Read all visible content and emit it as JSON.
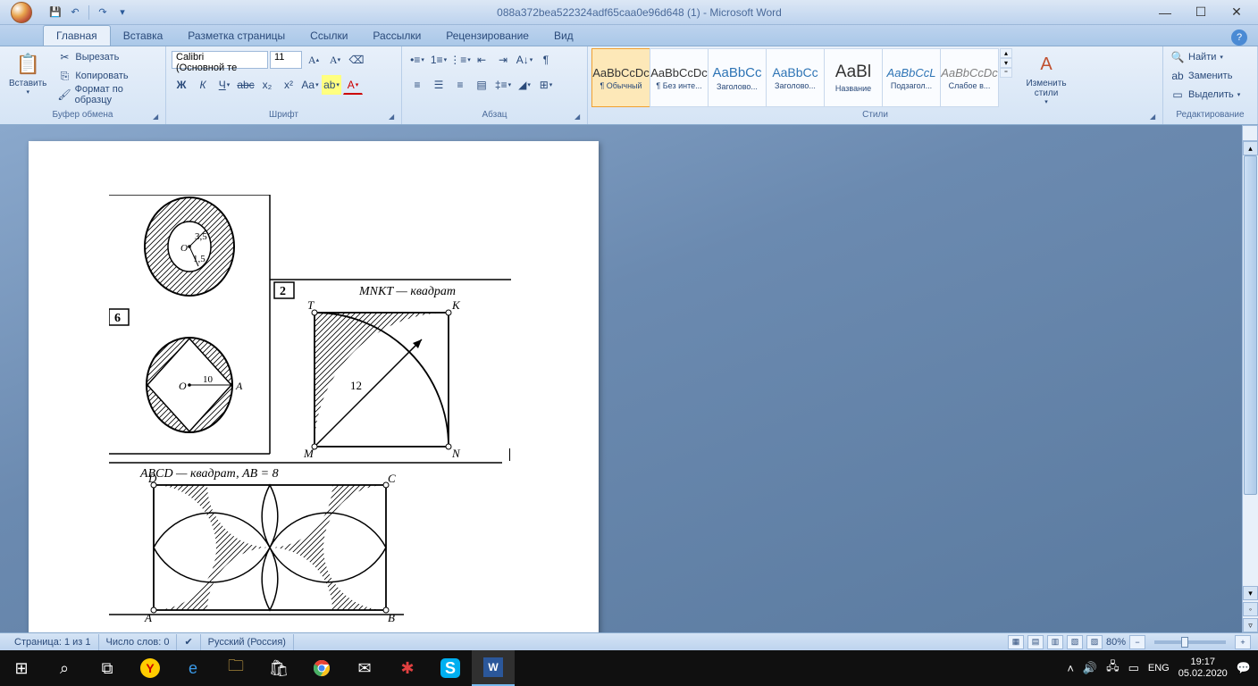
{
  "window": {
    "title": "088a372bea522324adf65caa0e96d648 (1) - Microsoft Word"
  },
  "qat": {
    "save": "💾",
    "undo": "↶",
    "redo": "↷",
    "dd": "▾"
  },
  "tabs": [
    "Главная",
    "Вставка",
    "Разметка страницы",
    "Ссылки",
    "Рассылки",
    "Рецензирование",
    "Вид"
  ],
  "clipboard": {
    "paste": "Вставить",
    "cut": "Вырезать",
    "copy": "Копировать",
    "format": "Формат по образцу",
    "group": "Буфер обмена"
  },
  "font": {
    "name": "Calibri (Основной те",
    "size": "11",
    "group": "Шрифт"
  },
  "paragraph": {
    "group": "Абзац"
  },
  "styles": {
    "group": "Стили",
    "change": "Изменить стили",
    "items": [
      {
        "preview": "AaBbCcDc",
        "name": "¶ Обычный",
        "sel": true
      },
      {
        "preview": "AaBbCcDc",
        "name": "¶ Без инте...",
        "sel": false
      },
      {
        "preview": "AaBbCc",
        "name": "Заголово...",
        "sel": false,
        "color": "#2e74b5",
        "fs": "15px"
      },
      {
        "preview": "AaBbCc",
        "name": "Заголово...",
        "sel": false,
        "color": "#2e74b5",
        "fs": "14px"
      },
      {
        "preview": "AaBl",
        "name": "Название",
        "sel": false,
        "fs": "19px"
      },
      {
        "preview": "AaBbCcL",
        "name": "Подзагол...",
        "sel": false,
        "color": "#2e74b5",
        "italic": true
      },
      {
        "preview": "AaBbCcDc",
        "name": "Слабое в...",
        "sel": false,
        "color": "#808080",
        "italic": true
      }
    ]
  },
  "editing": {
    "find": "Найти",
    "replace": "Заменить",
    "select": "Выделить",
    "group": "Редактирование"
  },
  "document": {
    "fig1": {
      "r_outer": "3,5",
      "r_inner": "1,5",
      "center": "O"
    },
    "fig6": {
      "num": "6",
      "center": "O",
      "pointA": "A",
      "radius": "10"
    },
    "fig2": {
      "num": "2",
      "title": "MNKT — квадрат",
      "T": "T",
      "K": "K",
      "M": "M",
      "N": "N",
      "diag": "12"
    },
    "fig3": {
      "title": "ABCD — квадрат, AB = 8",
      "A": "A",
      "B": "B",
      "C": "C",
      "D": "D"
    }
  },
  "statusbar": {
    "page": "Страница: 1 из 1",
    "words": "Число слов: 0",
    "lang": "Русский (Россия)",
    "zoom": "80%"
  },
  "taskbar": {
    "time": "19:17",
    "date": "05.02.2020",
    "lang": "ENG"
  }
}
